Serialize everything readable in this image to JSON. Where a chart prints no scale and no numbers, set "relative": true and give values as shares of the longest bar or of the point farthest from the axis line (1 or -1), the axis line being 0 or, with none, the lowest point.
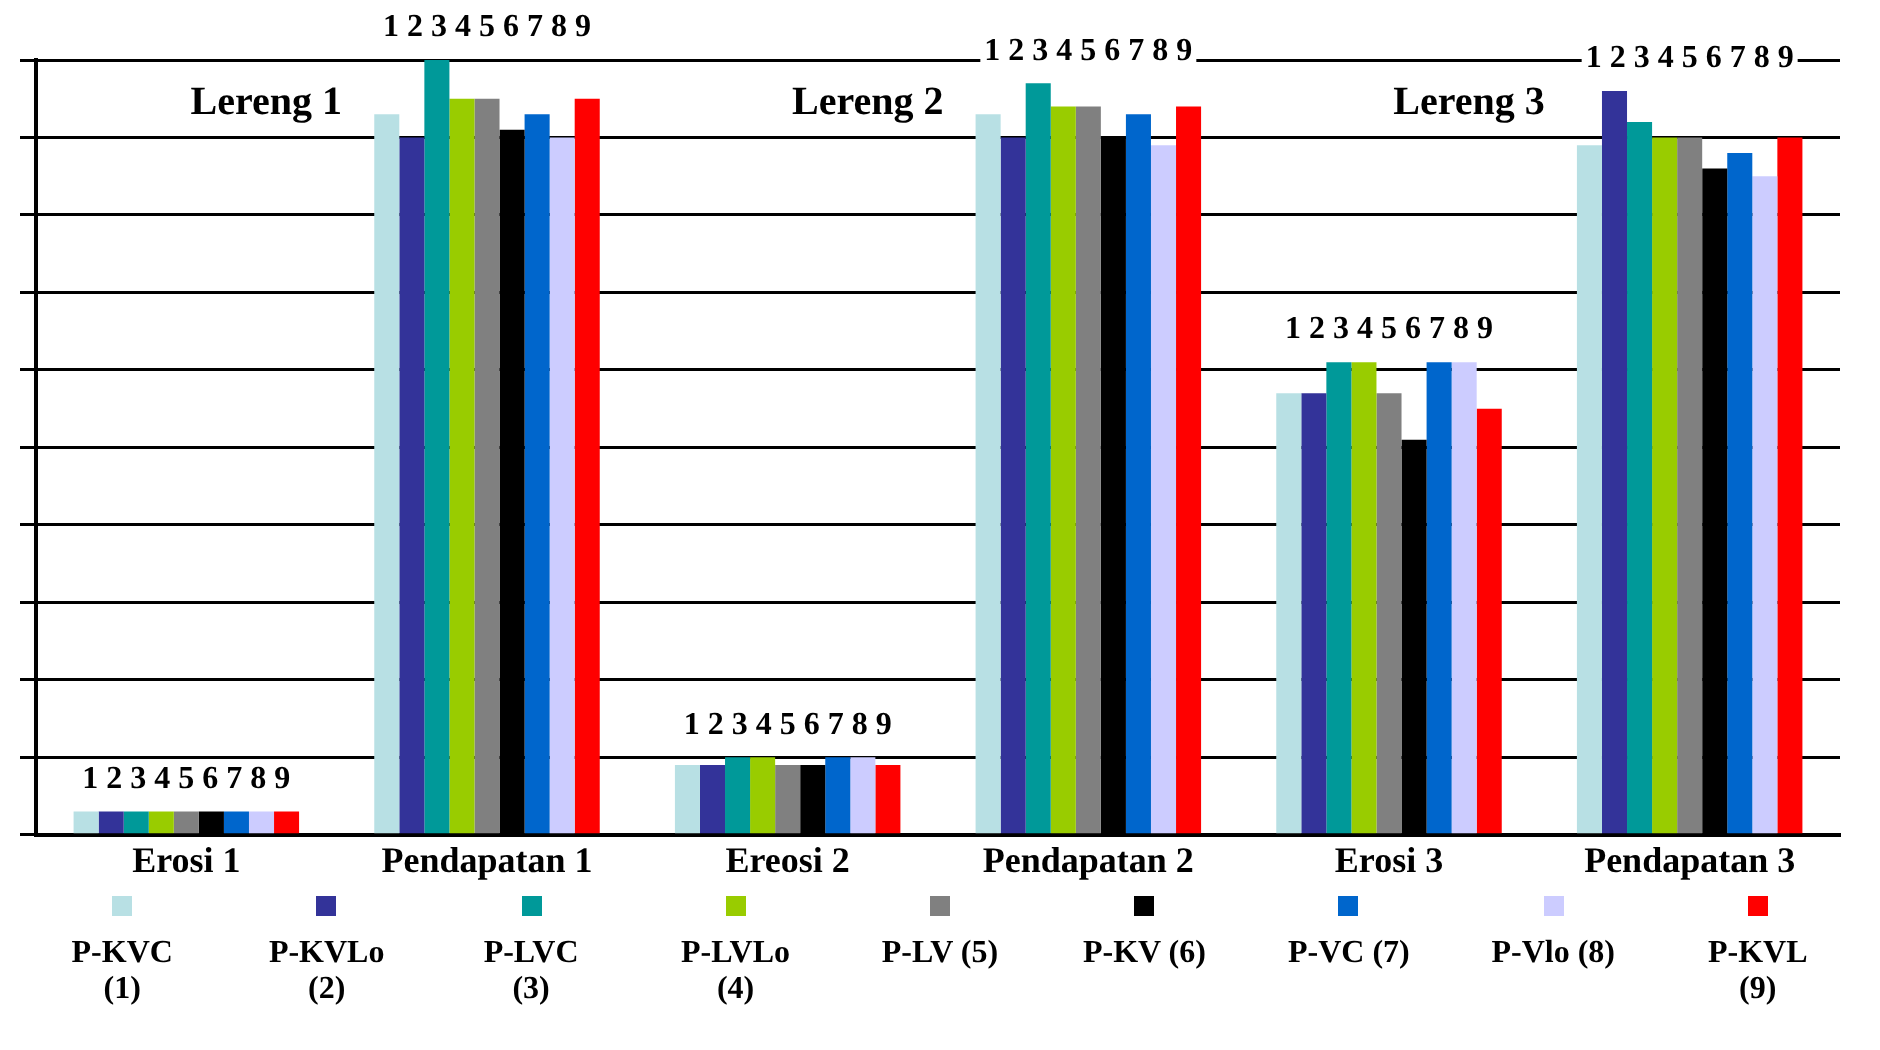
{
  "chart_data": {
    "type": "bar",
    "relative": true,
    "grid": "y",
    "legend": "bottom",
    "categories": [
      "Erosi 1",
      "Pendapatan 1",
      "Ereosi 2",
      "Pendapatan 2",
      "Erosi 3",
      "Pendapatan 3"
    ],
    "annotations": [
      "Lereng 1",
      "Lereng 2",
      "Lereng 3",
      "1 2 3 4 5 6 7 8 9",
      "1 2 3 4 5 6 7 8 9",
      "1 2 3 4 5 6 7 8 9",
      "1 2 3 4 5 6 7 8 9",
      "1 2 3 4 5 6 7 8 9",
      "1 2 3 4 5 6 7 8 9"
    ],
    "series": [
      {
        "name": "P-KVC (1)",
        "color": "#b8e0e4",
        "values": [
          0.03,
          0.93,
          0.09,
          0.93,
          0.57,
          0.89
        ]
      },
      {
        "name": "P-KVLo (2)",
        "color": "#333399",
        "values": [
          0.03,
          0.9,
          0.09,
          0.9,
          0.57,
          0.96
        ]
      },
      {
        "name": "P-LVC (3)",
        "color": "#009999",
        "values": [
          0.03,
          1,
          0.1,
          0.97,
          0.61,
          0.92
        ]
      },
      {
        "name": "P-LVLo (4)",
        "color": "#99cc00",
        "values": [
          0.03,
          0.95,
          0.1,
          0.94,
          0.61,
          0.9
        ]
      },
      {
        "name": "P-LV (5)",
        "color": "#808080",
        "values": [
          0.03,
          0.95,
          0.09,
          0.94,
          0.57,
          0.9
        ]
      },
      {
        "name": "P-KV (6)",
        "color": "#000000",
        "values": [
          0.03,
          0.91,
          0.09,
          0.9,
          0.51,
          0.86
        ]
      },
      {
        "name": "P-VC (7)",
        "color": "#0066cc",
        "values": [
          0.03,
          0.93,
          0.1,
          0.93,
          0.61,
          0.88
        ]
      },
      {
        "name": "P-Vlo (8)",
        "color": "#ccccff",
        "values": [
          0.03,
          0.9,
          0.1,
          0.89,
          0.61,
          0.85
        ]
      },
      {
        "name": "P-KVL (9)",
        "color": "#ff0000",
        "values": [
          0.03,
          0.95,
          0.09,
          0.94,
          0.55,
          0.9
        ]
      }
    ]
  }
}
